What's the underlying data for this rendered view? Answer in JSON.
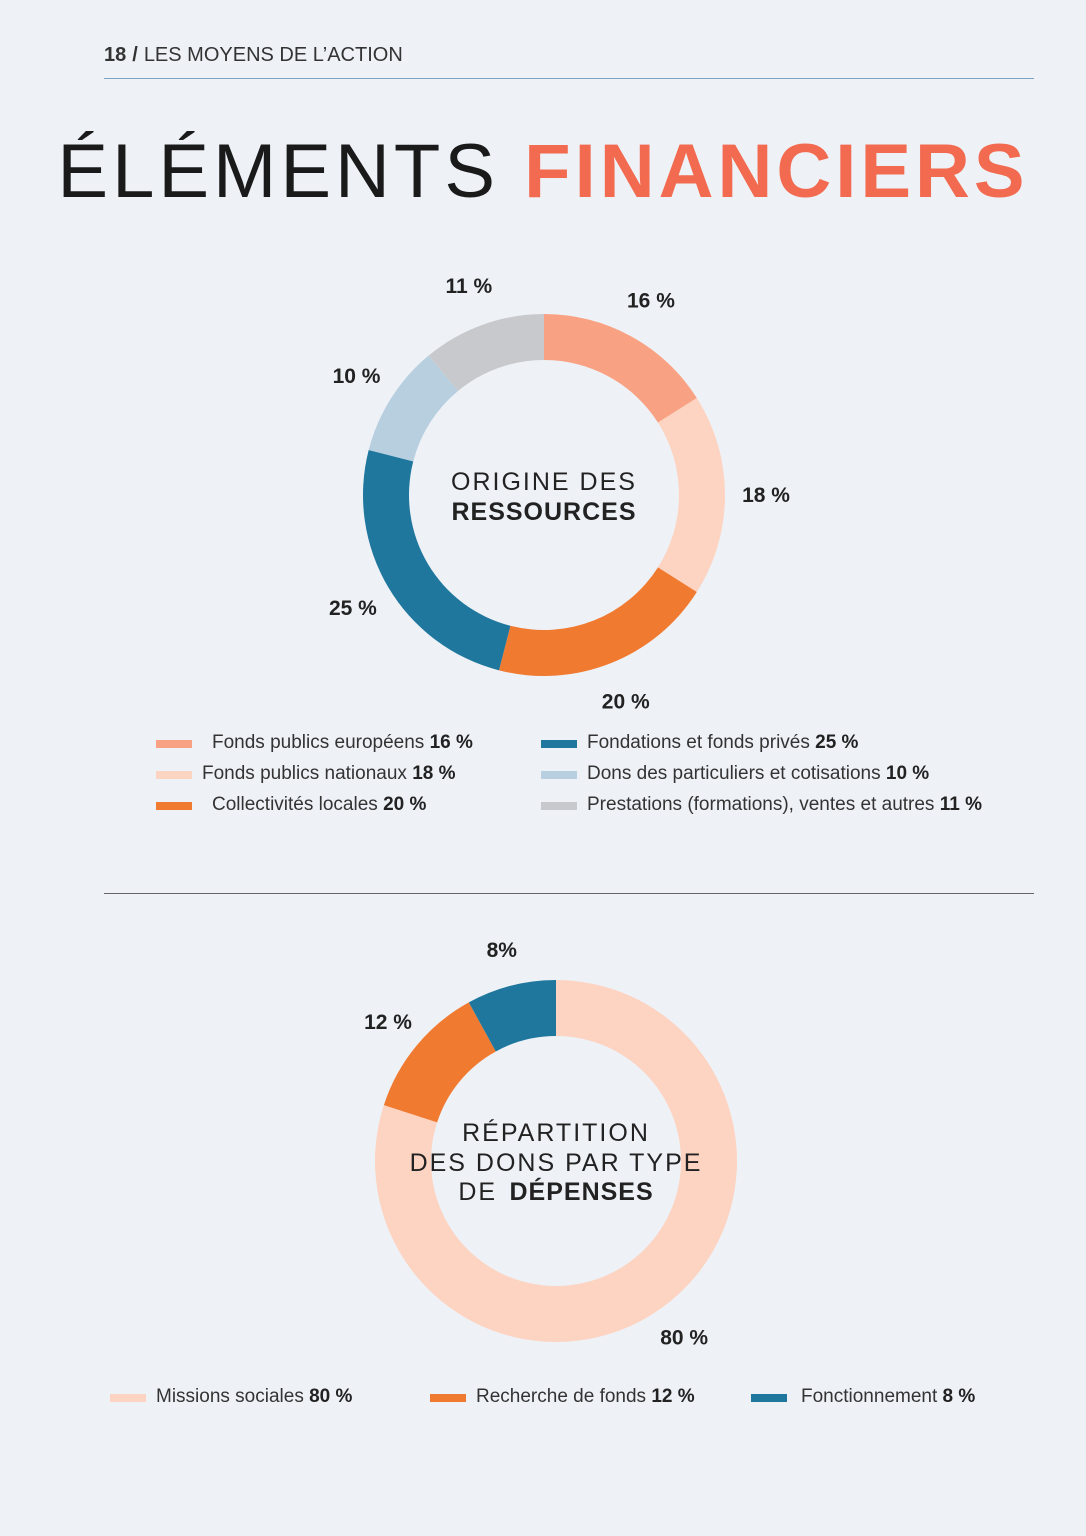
{
  "header": {
    "page_number": "18",
    "separator": "/",
    "section": "LES MOYENS DE L’ACTION"
  },
  "title": {
    "part1": "ÉLÉMENTS",
    "part2": "FINANCIERS"
  },
  "chart_data": [
    {
      "type": "pie",
      "center_label": {
        "line1": "ORIGINE DES",
        "line2_bold": "RESSOURCES"
      },
      "slices": [
        {
          "name": "Fonds publics européens",
          "value": 16,
          "label": "16 %",
          "color": "#f9a283"
        },
        {
          "name": "Fonds publics nationaux",
          "value": 18,
          "label": "18 %",
          "color": "#fdd3c1"
        },
        {
          "name": "Collectivités locales",
          "value": 20,
          "label": "20 %",
          "color": "#f17a31"
        },
        {
          "name": "Fondations et fonds privés",
          "value": 25,
          "label": "25 %",
          "color": "#20779e"
        },
        {
          "name": "Dons des particuliers et cotisations",
          "value": 10,
          "label": "10 %",
          "color": "#b7cfdf"
        },
        {
          "name": "Prestations (formations), ventes et autres",
          "value": 11,
          "label": "11 %",
          "color": "#c8c9cc"
        }
      ],
      "legend": [
        {
          "text": "Fonds publics européens",
          "value": "16 %"
        },
        {
          "text": "Fonds publics nationaux",
          "value": "18 %"
        },
        {
          "text": "Collectivités locales",
          "value": "20 %"
        },
        {
          "text": "Fondations et fonds privés",
          "value": "25 %"
        },
        {
          "text": "Dons des particuliers et cotisations",
          "value": "10 %"
        },
        {
          "text": "Prestations (formations), ventes et autres",
          "value": "11 %"
        }
      ]
    },
    {
      "type": "pie",
      "center_label": {
        "line1": "RÉPARTITION",
        "line2": "DES DONS PAR TYPE",
        "line3_prefix": "DE",
        "line3_bold": "DÉPENSES"
      },
      "slices": [
        {
          "name": "Missions sociales",
          "value": 80,
          "label": "80 %",
          "color": "#fdd3c1"
        },
        {
          "name": "Recherche de fonds",
          "value": 12,
          "label": "12 %",
          "color": "#f17a31"
        },
        {
          "name": "Fonctionnement",
          "value": 8,
          "label": "8%",
          "color": "#20779e"
        }
      ],
      "legend": [
        {
          "text": "Missions sociales",
          "value": "80 %"
        },
        {
          "text": "Recherche de fonds",
          "value": "12 %"
        },
        {
          "text": "Fonctionnement",
          "value": "8 %"
        }
      ]
    }
  ]
}
